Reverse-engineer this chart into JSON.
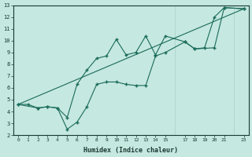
{
  "xlabel": "Humidex (Indice chaleur)",
  "ylabel": "",
  "bg_color": "#c5e8e0",
  "grid_color": "#a8d0c8",
  "line_color": "#1a6b5a",
  "xlim": [
    -0.5,
    23.5
  ],
  "ylim": [
    2,
    13
  ],
  "line1_x": [
    0,
    1,
    2,
    3,
    4,
    5,
    6,
    7,
    8,
    9,
    10,
    11,
    12,
    13,
    14,
    15,
    17,
    18,
    19,
    20,
    21,
    23
  ],
  "line1_y": [
    4.6,
    4.6,
    4.3,
    4.4,
    4.3,
    3.5,
    6.3,
    7.5,
    8.5,
    8.7,
    10.1,
    8.8,
    9.0,
    10.4,
    8.8,
    10.4,
    9.9,
    9.3,
    9.4,
    12.0,
    12.8,
    12.7
  ],
  "line2_x": [
    0,
    2,
    3,
    4,
    5,
    6,
    7,
    8,
    9,
    10,
    11,
    12,
    13,
    14,
    15,
    17,
    18,
    20,
    21,
    23
  ],
  "line2_y": [
    4.6,
    4.3,
    4.4,
    4.3,
    2.5,
    3.1,
    4.4,
    6.3,
    6.5,
    6.5,
    6.3,
    6.2,
    6.2,
    8.7,
    9.0,
    9.9,
    9.3,
    9.4,
    12.8,
    12.7
  ],
  "line3_x": [
    0,
    23
  ],
  "line3_y": [
    4.6,
    12.7
  ]
}
